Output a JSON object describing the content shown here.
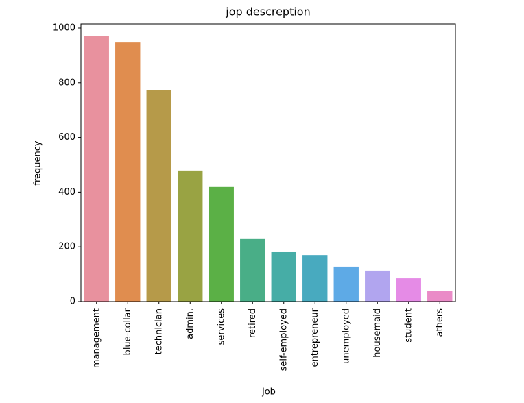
{
  "chart_data": {
    "type": "bar",
    "title": "jop descreption",
    "x_label": "job",
    "y_label": "frequency",
    "categories": [
      "management",
      "blue-collar",
      "technician",
      "admin.",
      "services",
      "retired",
      "self-employed",
      "entrepreneur",
      "unemployed",
      "housemaid",
      "student",
      "athers"
    ],
    "values": [
      972,
      947,
      772,
      479,
      419,
      231,
      183,
      170,
      128,
      113,
      85,
      40
    ],
    "colors": [
      "#e8919e",
      "#e08d4f",
      "#b69a49",
      "#99a343",
      "#5bb046",
      "#49ae87",
      "#46ada6",
      "#48aabf",
      "#5eaae6",
      "#b1a5ef",
      "#e58be6",
      "#ea8bc7"
    ],
    "ylim": [
      0,
      1015
    ],
    "yticks": [
      0,
      200,
      400,
      600,
      800,
      1000
    ],
    "grid": false
  }
}
